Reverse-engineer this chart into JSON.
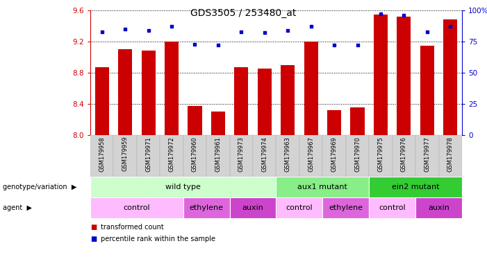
{
  "title": "GDS3505 / 253480_at",
  "samples": [
    "GSM179958",
    "GSM179959",
    "GSM179971",
    "GSM179972",
    "GSM179960",
    "GSM179961",
    "GSM179973",
    "GSM179974",
    "GSM179963",
    "GSM179967",
    "GSM179969",
    "GSM179970",
    "GSM179975",
    "GSM179976",
    "GSM179977",
    "GSM179978"
  ],
  "bar_values": [
    8.87,
    9.1,
    9.08,
    9.2,
    8.37,
    8.3,
    8.87,
    8.85,
    8.9,
    9.2,
    8.32,
    8.36,
    9.55,
    9.52,
    9.15,
    9.48
  ],
  "dot_values": [
    83,
    85,
    84,
    87,
    73,
    72,
    83,
    82,
    84,
    87,
    72,
    72,
    97,
    96,
    83,
    87
  ],
  "ylim_left": [
    8.0,
    9.6
  ],
  "ylim_right": [
    0,
    100
  ],
  "yticks_left": [
    8.0,
    8.4,
    8.8,
    9.2,
    9.6
  ],
  "yticks_right": [
    0,
    25,
    50,
    75,
    100
  ],
  "bar_color": "#cc0000",
  "dot_color": "#0000cc",
  "genotype_groups": [
    {
      "label": "wild type",
      "start": 0,
      "end": 8,
      "color": "#ccffcc"
    },
    {
      "label": "aux1 mutant",
      "start": 8,
      "end": 12,
      "color": "#88ee88"
    },
    {
      "label": "ein2 mutant",
      "start": 12,
      "end": 16,
      "color": "#33cc33"
    }
  ],
  "agent_groups": [
    {
      "label": "control",
      "start": 0,
      "end": 4,
      "color": "#ffbbff"
    },
    {
      "label": "ethylene",
      "start": 4,
      "end": 6,
      "color": "#dd66dd"
    },
    {
      "label": "auxin",
      "start": 6,
      "end": 8,
      "color": "#cc44cc"
    },
    {
      "label": "control",
      "start": 8,
      "end": 10,
      "color": "#ffbbff"
    },
    {
      "label": "ethylene",
      "start": 10,
      "end": 12,
      "color": "#dd66dd"
    },
    {
      "label": "control",
      "start": 12,
      "end": 14,
      "color": "#ffbbff"
    },
    {
      "label": "auxin",
      "start": 14,
      "end": 16,
      "color": "#cc44cc"
    }
  ],
  "right_ytick_labels": [
    "0",
    "25",
    "50",
    "75",
    "100%"
  ]
}
